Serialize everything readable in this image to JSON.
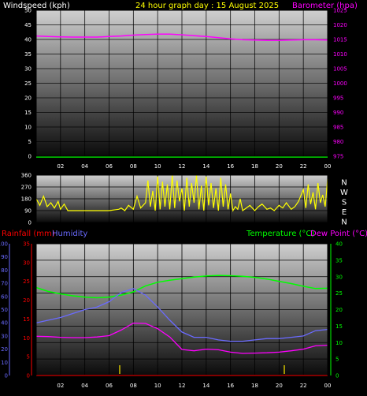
{
  "header": {
    "windspeed_label": "Windspeed (kph)",
    "graph_title": "24 hour graph day : 15 August 2025",
    "barometer_label": "Barometer (hpa)"
  },
  "legend2": {
    "rainfall_label": "Rainfall (mm)",
    "humidity_label": "Humidity",
    "temperature_label": "Temperature (°C)",
    "dewpoint_label": "Dew Point (°C)"
  },
  "colors": {
    "windspeed": "#ffffff",
    "title": "#ffff00",
    "barometer": "#ff00ff",
    "wind_dir": "#ffff00",
    "rainfall": "#ff0000",
    "humidity": "#6a6aff",
    "temperature": "#00ff00",
    "dewpoint": "#ff00ff",
    "grid": "#000000",
    "bg": "#000000"
  },
  "chart_data": [
    {
      "type": "line",
      "name": "wind-pressure",
      "x_ticks": [
        "02",
        "04",
        "06",
        "08",
        "10",
        "12",
        "14",
        "16",
        "18",
        "20",
        "22",
        "00"
      ],
      "left_axis": {
        "label": "Windspeed (kph)",
        "ticks": [
          "0",
          "5",
          "10",
          "15",
          "20",
          "25",
          "30",
          "35",
          "40",
          "45",
          "50"
        ],
        "ylim": [
          0,
          50
        ]
      },
      "right_axis": {
        "label": "Barometer (hpa)",
        "ticks": [
          "975",
          "980",
          "985",
          "990",
          "995",
          "1000",
          "1005",
          "1010",
          "1015",
          "1020",
          "1025"
        ],
        "ylim": [
          975,
          1025
        ]
      },
      "series": [
        {
          "name": "Barometer (hpa)",
          "x": [
            0,
            1,
            2,
            3,
            4,
            5,
            6,
            7,
            8,
            9,
            10,
            11,
            12,
            13,
            14,
            15,
            16,
            17,
            18,
            19,
            20,
            21,
            22,
            23,
            24
          ],
          "values": [
            1016.2,
            1016.0,
            1015.9,
            1015.8,
            1015.8,
            1015.8,
            1016.0,
            1016.2,
            1016.5,
            1016.7,
            1016.8,
            1016.8,
            1016.6,
            1016.3,
            1016.0,
            1015.6,
            1015.2,
            1014.9,
            1014.8,
            1014.7,
            1014.7,
            1014.8,
            1014.9,
            1014.9,
            1014.8
          ]
        }
      ]
    },
    {
      "type": "line",
      "name": "wind-direction",
      "x_ticks": [
        "02",
        "04",
        "06",
        "08",
        "10",
        "12",
        "14",
        "16",
        "18",
        "20",
        "22",
        "00"
      ],
      "left_axis": {
        "ticks": [
          "0",
          "90",
          "180",
          "270",
          "360"
        ],
        "ylim": [
          0,
          360
        ]
      },
      "right_axis": {
        "ticks": [
          "N",
          "W",
          "S",
          "E",
          "N"
        ]
      },
      "series": [
        {
          "name": "Wind direction",
          "x": [
            0,
            0.3,
            0.6,
            0.9,
            1.2,
            1.5,
            1.8,
            2.0,
            2.3,
            2.6,
            3.0,
            4.0,
            5.0,
            6.0,
            6.8,
            7.0,
            7.3,
            7.6,
            8.0,
            8.3,
            8.6,
            9.0,
            9.2,
            9.4,
            9.6,
            9.8,
            10.0,
            10.2,
            10.4,
            10.6,
            10.8,
            11.0,
            11.2,
            11.4,
            11.6,
            11.8,
            12.0,
            12.2,
            12.4,
            12.6,
            12.8,
            13.0,
            13.2,
            13.4,
            13.6,
            13.8,
            14.0,
            14.2,
            14.4,
            14.6,
            14.8,
            15.0,
            15.2,
            15.4,
            15.6,
            15.8,
            16.0,
            16.2,
            16.4,
            16.6,
            16.8,
            17.0,
            17.3,
            17.6,
            18.0,
            18.3,
            18.6,
            19.0,
            19.3,
            19.6,
            20.0,
            20.3,
            20.6,
            21.0,
            21.3,
            21.6,
            22.0,
            22.2,
            22.4,
            22.6,
            22.8,
            23.0,
            23.2,
            23.4,
            23.6,
            23.8,
            24.0
          ],
          "values": [
            180,
            130,
            200,
            120,
            150,
            110,
            160,
            100,
            140,
            90,
            90,
            90,
            90,
            90,
            100,
            110,
            90,
            130,
            100,
            200,
            110,
            150,
            320,
            120,
            240,
            90,
            350,
            100,
            310,
            120,
            290,
            100,
            360,
            110,
            320,
            160,
            260,
            90,
            340,
            120,
            300,
            150,
            360,
            100,
            280,
            90,
            350,
            130,
            300,
            110,
            260,
            90,
            340,
            120,
            290,
            100,
            220,
            90,
            120,
            100,
            180,
            90,
            110,
            130,
            90,
            120,
            140,
            100,
            110,
            90,
            130,
            110,
            150,
            100,
            120,
            160,
            250,
            110,
            290,
            140,
            230,
            100,
            300,
            150,
            210,
            120,
            330
          ]
        }
      ]
    },
    {
      "type": "line",
      "name": "temp-humidity",
      "x_ticks": [
        "02",
        "04",
        "06",
        "08",
        "10",
        "12",
        "14",
        "16",
        "18",
        "20",
        "22",
        "00"
      ],
      "humidity_axis": {
        "label": "Humidity",
        "ticks": [
          "0",
          "10",
          "20",
          "30",
          "40",
          "50",
          "60",
          "70",
          "80",
          "90",
          "100"
        ],
        "ylim": [
          0,
          100
        ]
      },
      "rainfall_axis": {
        "label": "Rainfall (mm)",
        "ticks": [
          "0",
          "5",
          "10",
          "15",
          "20",
          "25",
          "30",
          "35"
        ],
        "ylim": [
          0,
          35
        ]
      },
      "temperature_axis": {
        "label": "Temperature (°C)",
        "ticks": [
          "0",
          "5",
          "10",
          "15",
          "20",
          "25",
          "30",
          "35",
          "40"
        ],
        "ylim": [
          0,
          40
        ]
      },
      "series": [
        {
          "name": "Temperature (°C)",
          "x": [
            0,
            1,
            2,
            3,
            4,
            5,
            6,
            7,
            8,
            9,
            10,
            11,
            12,
            13,
            14,
            15,
            16,
            17,
            18,
            19,
            20,
            21,
            22,
            23,
            24
          ],
          "values": [
            26.7,
            25.5,
            24.8,
            24.2,
            23.8,
            23.6,
            23.8,
            24.4,
            25.4,
            27.2,
            28.3,
            28.9,
            29.4,
            29.9,
            30.2,
            30.4,
            30.3,
            30.1,
            29.8,
            29.3,
            28.6,
            27.9,
            27.1,
            26.4,
            26.5
          ]
        },
        {
          "name": "Humidity",
          "x": [
            0,
            1,
            2,
            3,
            4,
            5,
            6,
            7,
            8,
            9,
            10,
            11,
            12,
            13,
            14,
            15,
            16,
            17,
            18,
            19,
            20,
            21,
            22,
            23,
            24
          ],
          "values": [
            40,
            42,
            44,
            47,
            50,
            52,
            56,
            63,
            66,
            61,
            52,
            42,
            33,
            29,
            29,
            27,
            26,
            26,
            27,
            28,
            28,
            29,
            30,
            34,
            35
          ]
        },
        {
          "name": "Dew Point (°C)",
          "x": [
            0,
            1,
            2,
            3,
            4,
            5,
            6,
            7,
            8,
            9,
            10,
            11,
            12,
            13,
            14,
            15,
            16,
            17,
            18,
            19,
            20,
            21,
            22,
            23,
            24
          ],
          "values": [
            11.9,
            11.8,
            11.6,
            11.5,
            11.5,
            11.7,
            12.1,
            13.8,
            15.9,
            15.8,
            14.2,
            11.7,
            7.9,
            7.5,
            8.0,
            7.8,
            7.1,
            6.7,
            6.8,
            6.9,
            7.1,
            7.5,
            8.0,
            9.0,
            9.2
          ]
        },
        {
          "name": "Rainfall (mm)",
          "x": [
            0,
            24
          ],
          "values": [
            0,
            0
          ]
        }
      ]
    }
  ]
}
